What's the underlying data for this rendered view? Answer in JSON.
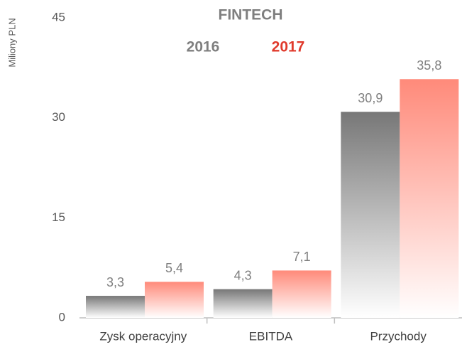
{
  "chart_data": {
    "type": "bar",
    "title": "FINTECH",
    "y_label": "Miliony PLN",
    "categories": [
      "Zysk operacyjny",
      "EBITDA",
      "Przychody"
    ],
    "series": [
      {
        "name": "2016",
        "color": "#777777",
        "label_color": "#7f7f7f",
        "values": [
          3.3,
          4.3,
          30.9
        ],
        "value_labels": [
          "3,3",
          "4,3",
          "30,9"
        ]
      },
      {
        "name": "2017",
        "color": "#ff8a7a",
        "label_color": "#e03a2c",
        "values": [
          5.4,
          7.1,
          35.8
        ],
        "value_labels": [
          "5,4",
          "7,1",
          "35,8"
        ]
      }
    ],
    "ylim": [
      0,
      45
    ],
    "yticks": [
      0,
      15,
      30,
      45
    ],
    "grid": false
  }
}
